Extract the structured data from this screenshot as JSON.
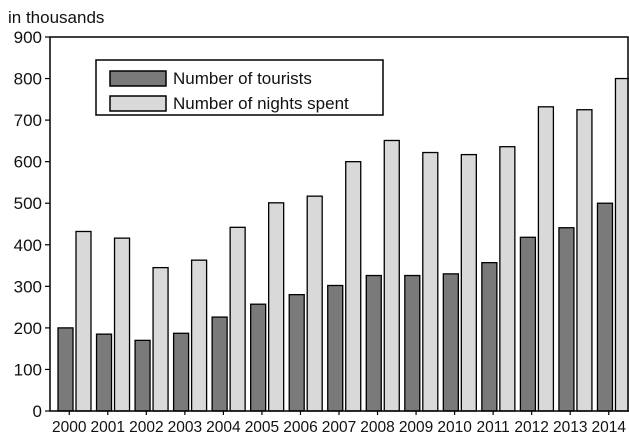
{
  "chart_data": {
    "type": "bar",
    "unit_label": "in thousands",
    "categories": [
      "2000",
      "2001",
      "2002",
      "2003",
      "2004",
      "2005",
      "2006",
      "2007",
      "2008",
      "2009",
      "2010",
      "2011",
      "2012",
      "2013",
      "2014"
    ],
    "series": [
      {
        "name": "Number of tourists",
        "color": "#7a7a7a",
        "values": [
          200,
          185,
          170,
          187,
          226,
          257,
          280,
          302,
          326,
          326,
          330,
          357,
          418,
          441,
          500
        ]
      },
      {
        "name": "Number of nights spent",
        "color": "#d9d9d9",
        "values": [
          432,
          416,
          345,
          363,
          442,
          501,
          517,
          600,
          651,
          622,
          617,
          636,
          732,
          725,
          800
        ]
      }
    ],
    "ylim": [
      0,
      900
    ],
    "yticks": [
      0,
      100,
      200,
      300,
      400,
      500,
      600,
      700,
      800,
      900
    ],
    "grid": false,
    "legend_position": "top-left"
  }
}
